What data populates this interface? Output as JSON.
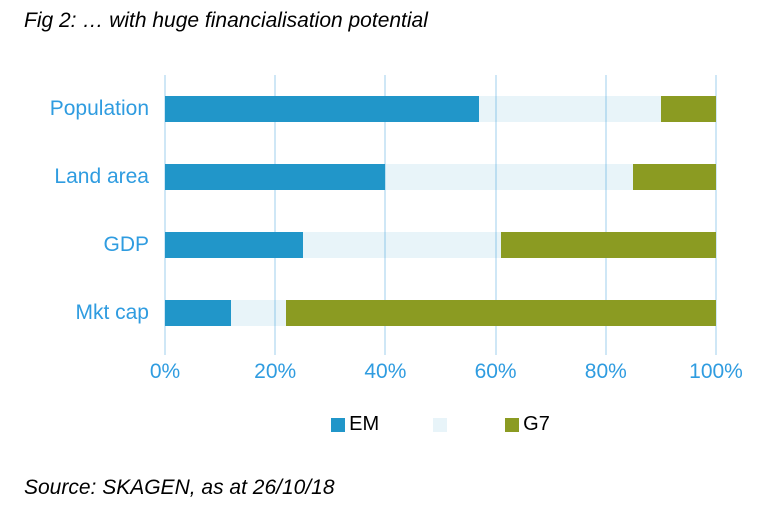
{
  "title": "Fig 2: … with huge financialisation potential",
  "source": "Source: SKAGEN, as at 26/10/18",
  "colors": {
    "em_blue": "#2196c9",
    "other_pale_blue": "#e8f3f9",
    "g7_olive": "#8b9b22",
    "axis_label_blue": "#2f9ce0",
    "gridline_blue": "#cfe7f6",
    "text_black": "#000000",
    "background": "#ffffff"
  },
  "chart_data": {
    "type": "bar",
    "orientation": "horizontal",
    "stacked": true,
    "title": "Fig 2: … with huge financialisation potential",
    "categories": [
      "Population",
      "Land area",
      "GDP",
      "Mkt cap"
    ],
    "series": [
      {
        "name": "EM",
        "key": "em",
        "color": "#2196c9",
        "values": [
          57,
          40,
          25,
          12
        ]
      },
      {
        "name": "",
        "key": "other",
        "color": "rgba(33,150,201,0.10)",
        "values": [
          33,
          45,
          36,
          10
        ]
      },
      {
        "name": "G7",
        "key": "g7",
        "color": "#8b9b22",
        "values": [
          10,
          15,
          39,
          78
        ]
      }
    ],
    "xlim": [
      0,
      100
    ],
    "xticks": [
      0,
      20,
      40,
      60,
      80,
      100
    ],
    "xtick_labels": [
      "0%",
      "20%",
      "40%",
      "60%",
      "80%",
      "100%"
    ],
    "grid": "vertical",
    "legend_position": "bottom"
  }
}
